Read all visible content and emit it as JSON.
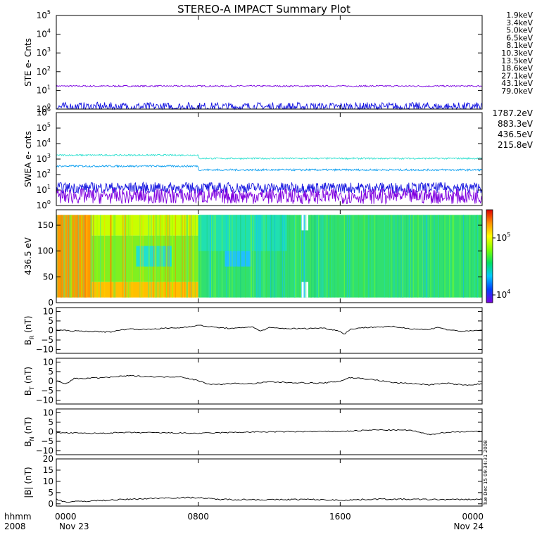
{
  "title": "STEREO-A IMPACT Summary Plot",
  "timestamp": "Tue Dec 15 09:34:31 2008",
  "time_axis": {
    "corner_labels": [
      "hhmm",
      "2008"
    ],
    "ticks": [
      {
        "label": "0000",
        "sub": "Nov 23",
        "hours": 0
      },
      {
        "label": "0800",
        "sub": "",
        "hours": 8
      },
      {
        "label": "1600",
        "sub": "",
        "hours": 16
      },
      {
        "label": "0000",
        "sub": "Nov 24",
        "hours": 24
      }
    ]
  },
  "colorbar": {
    "ticks": [
      "10^5",
      "10^4"
    ],
    "colors": [
      "#7a00e0",
      "#0040ff",
      "#00c8ff",
      "#00e060",
      "#80ff00",
      "#ffff00",
      "#ff9000",
      "#e00000"
    ]
  },
  "chart_data": [
    {
      "type": "line",
      "panel": "ste",
      "ylabel": "STE e- Cnts",
      "scale": "log",
      "ylim": [
        1,
        100000
      ],
      "yticks": [
        {
          "v": 1,
          "b": "10",
          "e": "0"
        },
        {
          "v": 10,
          "b": "10",
          "e": "1"
        },
        {
          "v": 100,
          "b": "10",
          "e": "2"
        },
        {
          "v": 1000,
          "b": "10",
          "e": "3"
        },
        {
          "v": 10000,
          "b": "10",
          "e": "4"
        },
        {
          "v": 100000,
          "b": "10",
          "e": "5"
        }
      ],
      "legend": [
        {
          "name": "1.9keV",
          "color": "#8a00d4"
        },
        {
          "name": "3.4keV",
          "color": "#5500c8"
        },
        {
          "name": "5.0keV",
          "color": "#2030e0"
        },
        {
          "name": "6.5keV",
          "color": "#00a0e0"
        },
        {
          "name": "8.1keV",
          "color": "#00c8c8"
        },
        {
          "name": "10.3keV",
          "color": "#00b020"
        },
        {
          "name": "13.5keV",
          "color": "#40c000"
        },
        {
          "name": "18.6keV",
          "color": "#b0c800"
        },
        {
          "name": "27.1keV",
          "color": "#e0c000"
        },
        {
          "name": "43.1keV",
          "color": "#e08000"
        },
        {
          "name": "79.0keV",
          "color": "#d02020"
        }
      ],
      "series": [
        {
          "name": "1.9keV",
          "color": "#7a00e0",
          "level": 17,
          "noise": 0.04
        },
        {
          "name": "5.0keV",
          "color": "#1010e0",
          "level": 1.3,
          "noise": 0.25
        }
      ]
    },
    {
      "type": "line",
      "panel": "swea",
      "ylabel": "SWEA e- cnts",
      "scale": "log",
      "ylim": [
        1,
        1000000
      ],
      "yticks": [
        {
          "v": 1,
          "b": "10",
          "e": "0"
        },
        {
          "v": 10,
          "b": "10",
          "e": "1"
        },
        {
          "v": 100,
          "b": "10",
          "e": "2"
        },
        {
          "v": 1000,
          "b": "10",
          "e": "3"
        },
        {
          "v": 10000,
          "b": "10",
          "e": "4"
        },
        {
          "v": 100000,
          "b": "10",
          "e": "5"
        },
        {
          "v": 1000000,
          "b": "10",
          "e": "6"
        }
      ],
      "legend": [
        {
          "name": "1787.2eV",
          "color": "#8a00d4"
        },
        {
          "name": "883.3eV",
          "color": "#1040e0"
        },
        {
          "name": "436.5eV",
          "color": "#0090e0"
        },
        {
          "name": "215.8eV",
          "color": "#00c8c8"
        }
      ],
      "series": [
        {
          "name": "215.8eV",
          "color": "#30e0d0",
          "segments": [
            [
              0,
              8,
              1800
            ],
            [
              8,
              24,
              1100
            ]
          ],
          "noise": 0.05
        },
        {
          "name": "436.5eV",
          "color": "#10a0f0",
          "segments": [
            [
              0,
              8,
              350
            ],
            [
              8,
              24,
              200
            ]
          ],
          "noise": 0.06
        },
        {
          "name": "883.3eV",
          "color": "#1818e0",
          "segments": [
            [
              0,
              24,
              14
            ]
          ],
          "noise": 0.35
        },
        {
          "name": "1787.2eV",
          "color": "#8000e0",
          "segments": [
            [
              0,
              24,
              4
            ]
          ],
          "noise": 0.5
        }
      ]
    },
    {
      "type": "heatmap",
      "panel": "pad",
      "ylabel": "436.5 eV",
      "ylim": [
        0,
        180
      ],
      "yticks": [
        0,
        50,
        100,
        150
      ],
      "blocks": [
        {
          "x0": 0,
          "x1": 2,
          "y0": 10,
          "y1": 170,
          "color": "#ff9a00"
        },
        {
          "x0": 2,
          "x1": 8,
          "y0": 130,
          "y1": 170,
          "color": "#c8ff00"
        },
        {
          "x0": 2,
          "x1": 8,
          "y0": 10,
          "y1": 40,
          "color": "#ffc000"
        },
        {
          "x0": 2,
          "x1": 8,
          "y0": 40,
          "y1": 130,
          "color": "#80f020"
        },
        {
          "x0": 4.5,
          "x1": 6.5,
          "y0": 70,
          "y1": 110,
          "color": "#20e0d0"
        },
        {
          "x0": 8,
          "x1": 24,
          "y0": 10,
          "y1": 170,
          "color": "#30e070"
        },
        {
          "x0": 8,
          "x1": 13,
          "y0": 100,
          "y1": 170,
          "color": "#20e0b0"
        },
        {
          "x0": 9.5,
          "x1": 11,
          "y0": 70,
          "y1": 100,
          "color": "#20c0ff"
        },
        {
          "x0": 13.8,
          "x1": 14.2,
          "y0": 10,
          "y1": 170,
          "color": "#ffffff"
        },
        {
          "x0": 13.8,
          "x1": 14.2,
          "y0": 40,
          "y1": 140,
          "color": "#30e070"
        }
      ]
    },
    {
      "type": "line",
      "panel": "br",
      "ylabel_main": "B",
      "ylabel_sub": "R",
      "ylabel_unit": "(nT)",
      "ylim": [
        -12,
        12
      ],
      "yticks": [
        -10,
        -5,
        0,
        5,
        10
      ],
      "series": [
        {
          "name": "BR",
          "color": "#000",
          "points": [
            [
              0,
              0.3
            ],
            [
              1,
              -0.3
            ],
            [
              2,
              -0.5
            ],
            [
              3,
              -0.8
            ],
            [
              4,
              0.8
            ],
            [
              5,
              0.5
            ],
            [
              6,
              1.1
            ],
            [
              7,
              1.4
            ],
            [
              8,
              2.7
            ],
            [
              9,
              1.6
            ],
            [
              10,
              1.0
            ],
            [
              11,
              2.0
            ],
            [
              11.5,
              -0.3
            ],
            [
              12,
              1.4
            ],
            [
              13,
              1.0
            ],
            [
              14,
              1.0
            ],
            [
              15,
              1.3
            ],
            [
              16,
              -0.3
            ],
            [
              16.2,
              -2.0
            ],
            [
              16.6,
              0.6
            ],
            [
              17,
              1.3
            ],
            [
              18,
              1.8
            ],
            [
              19,
              2.0
            ],
            [
              20,
              0.9
            ],
            [
              21,
              0.4
            ],
            [
              21.5,
              1.8
            ],
            [
              22,
              0.4
            ],
            [
              23,
              -0.5
            ],
            [
              24,
              0.2
            ]
          ]
        }
      ]
    },
    {
      "type": "line",
      "panel": "bt",
      "ylabel_main": "B",
      "ylabel_sub": "T",
      "ylabel_unit": "(nT)",
      "ylim": [
        -12,
        12
      ],
      "yticks": [
        -10,
        -5,
        0,
        5,
        10
      ],
      "series": [
        {
          "name": "BT",
          "color": "#000",
          "points": [
            [
              0,
              0.2
            ],
            [
              0.5,
              -1.5
            ],
            [
              1,
              1.3
            ],
            [
              2,
              1.6
            ],
            [
              3,
              2.0
            ],
            [
              4,
              2.8
            ],
            [
              5,
              2.5
            ],
            [
              6,
              2.2
            ],
            [
              7,
              2.4
            ],
            [
              8,
              0.2
            ],
            [
              8.5,
              -1.3
            ],
            [
              9,
              -1.8
            ],
            [
              10,
              -1.2
            ],
            [
              11,
              -1.4
            ],
            [
              12,
              -0.4
            ],
            [
              13,
              -0.7
            ],
            [
              14,
              -0.9
            ],
            [
              15,
              -1.1
            ],
            [
              16,
              0.0
            ],
            [
              16.5,
              1.8
            ],
            [
              17,
              1.6
            ],
            [
              18,
              0.6
            ],
            [
              19,
              -0.8
            ],
            [
              20,
              -1.2
            ],
            [
              21,
              -1.9
            ],
            [
              22,
              -1.1
            ],
            [
              23,
              -2.1
            ],
            [
              24,
              -1.5
            ]
          ]
        }
      ]
    },
    {
      "type": "line",
      "panel": "bn",
      "ylabel_main": "B",
      "ylabel_sub": "N",
      "ylabel_unit": "(nT)",
      "ylim": [
        -12,
        12
      ],
      "yticks": [
        -10,
        -5,
        0,
        5,
        10
      ],
      "series": [
        {
          "name": "BN",
          "color": "#000",
          "points": [
            [
              0,
              -0.5
            ],
            [
              2,
              -0.8
            ],
            [
              4,
              -0.4
            ],
            [
              6,
              -0.5
            ],
            [
              8,
              -0.8
            ],
            [
              10,
              -0.3
            ],
            [
              12,
              0.0
            ],
            [
              14,
              0.1
            ],
            [
              16,
              0.2
            ],
            [
              18,
              1.0
            ],
            [
              20,
              0.8
            ],
            [
              21,
              -1.5
            ],
            [
              22,
              -0.2
            ],
            [
              24,
              0.3
            ]
          ]
        }
      ]
    },
    {
      "type": "line",
      "panel": "bmag",
      "ylabel_main": "|B|",
      "ylabel_sub": "",
      "ylabel_unit": "(nT)",
      "ylim": [
        -1,
        20
      ],
      "yticks": [
        0,
        5,
        10,
        15,
        20
      ],
      "series": [
        {
          "name": "|B|",
          "color": "#000",
          "points": [
            [
              0,
              2.2
            ],
            [
              0.5,
              0.8
            ],
            [
              2,
              1.3
            ],
            [
              4,
              2.0
            ],
            [
              6,
              2.6
            ],
            [
              8,
              2.8
            ],
            [
              9,
              2.0
            ],
            [
              11,
              1.9
            ],
            [
              12,
              1.8
            ],
            [
              14,
              2.0
            ],
            [
              16,
              1.6
            ],
            [
              18,
              2.1
            ],
            [
              20,
              2.0
            ],
            [
              22,
              1.9
            ],
            [
              24,
              2.0
            ]
          ]
        }
      ]
    }
  ]
}
